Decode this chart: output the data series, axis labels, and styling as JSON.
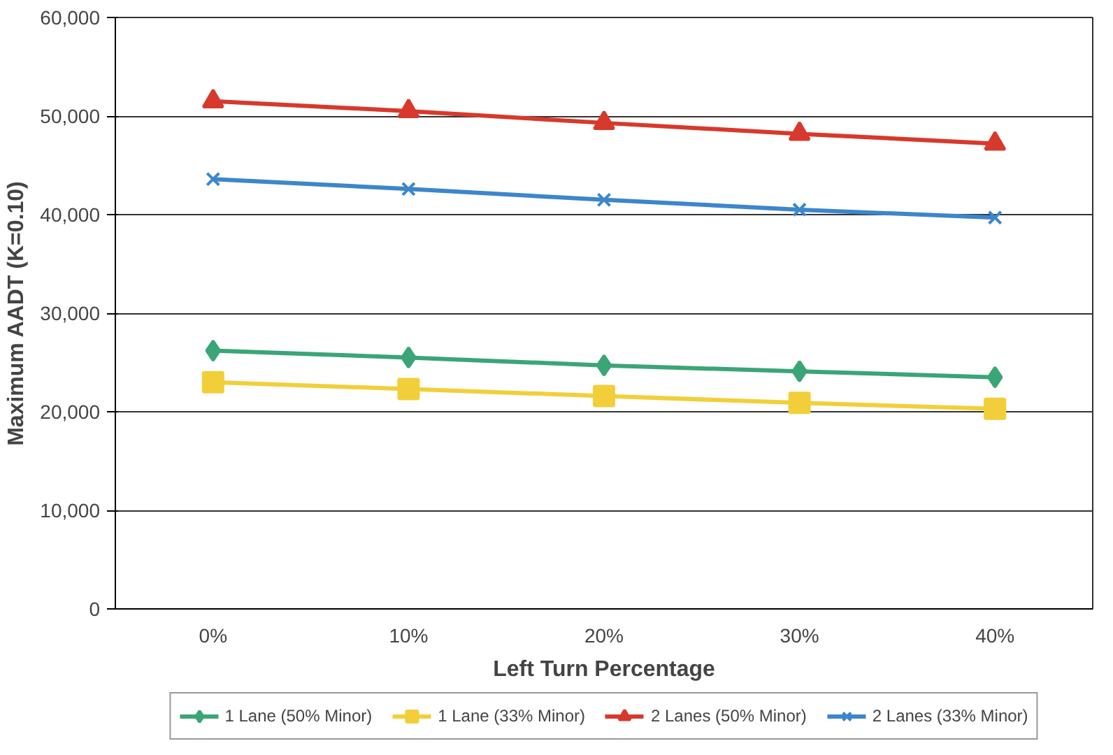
{
  "chart_data": {
    "type": "line",
    "xlabel": "Left Turn Percentage",
    "ylabel": "Maximum AADT (K=0.10)",
    "categories": [
      "0%",
      "10%",
      "20%",
      "30%",
      "40%"
    ],
    "series": [
      {
        "name": "1 Lane (50% Minor)",
        "color": "#3aa577",
        "marker": "diamond",
        "values": [
          26200,
          25500,
          24700,
          24100,
          23500
        ]
      },
      {
        "name": "1 Lane (33% Minor)",
        "color": "#f2cf3a",
        "marker": "square",
        "values": [
          23000,
          22300,
          21600,
          20900,
          20300
        ]
      },
      {
        "name": "2 Lanes (50% Minor)",
        "color": "#d7392c",
        "marker": "triangle",
        "values": [
          51500,
          50500,
          49300,
          48200,
          47200
        ]
      },
      {
        "name": "2 Lanes (33% Minor)",
        "color": "#3c86cc",
        "marker": "cross",
        "values": [
          43600,
          42600,
          41500,
          40500,
          39700
        ]
      }
    ],
    "ylim": [
      0,
      60000
    ],
    "yticks": [
      {
        "value": 0,
        "label": "0"
      },
      {
        "value": 10000,
        "label": "10,000"
      },
      {
        "value": 20000,
        "label": "20,000"
      },
      {
        "value": 30000,
        "label": "30,000"
      },
      {
        "value": 40000,
        "label": "40,000"
      },
      {
        "value": 50000,
        "label": "50,000"
      },
      {
        "value": 60000,
        "label": "60,000"
      }
    ],
    "grid": "y",
    "legend": "bottom",
    "line_style": "solid"
  }
}
